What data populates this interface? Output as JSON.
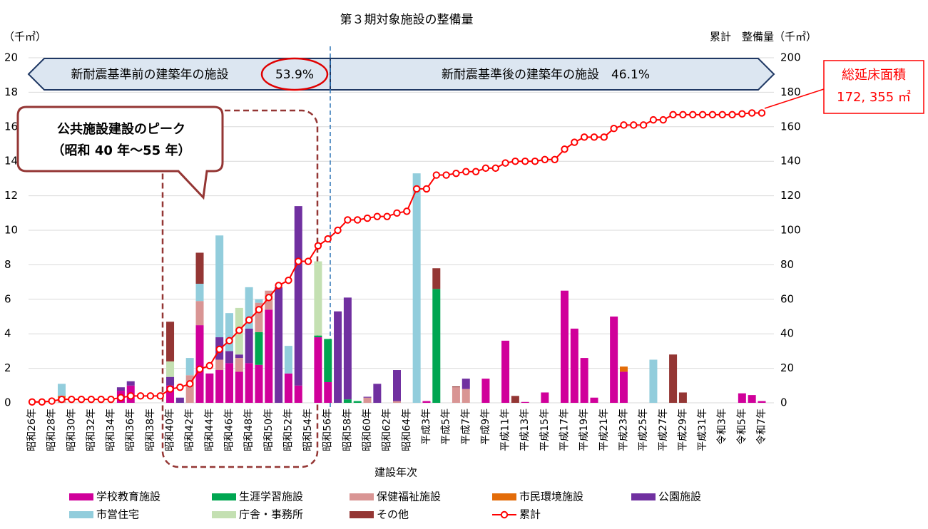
{
  "chart_data": {
    "type": "bar",
    "stacked": true,
    "title": "第３期対象施設の整備量",
    "y_label": "（千㎡）",
    "y2_label": "累計　整備量（千㎡）",
    "x_label": "建設年次",
    "annotations": {
      "before": "新耐震基準前の建築年の施設",
      "before_pct": "53.9%",
      "after": "新耐震基準後の建築年の施設　46.1%",
      "peak": "公共施設建設のピーク",
      "peak_range": "（昭和 40 年〜55 年）",
      "total_title": "総延床面積",
      "total_value": "172, 355 ㎡"
    },
    "categories": [
      "昭和26年",
      null,
      "昭和28年",
      null,
      "昭和30年",
      null,
      "昭和32年",
      null,
      "昭和34年",
      null,
      "昭和36年",
      null,
      "昭和38年",
      null,
      "昭和40年",
      null,
      "昭和42年",
      null,
      "昭和44年",
      null,
      "昭和46年",
      null,
      "昭和48年",
      null,
      "昭和50年",
      null,
      "昭和52年",
      null,
      "昭和54年",
      null,
      "昭和56年",
      null,
      "昭和58年",
      null,
      "昭和60年",
      null,
      "昭和62年",
      null,
      "昭和64年",
      null,
      "平成3年",
      null,
      "平成5年",
      null,
      "平成7年",
      null,
      "平成9年",
      null,
      "平成11年",
      null,
      "平成13年",
      null,
      "平成15年",
      null,
      "平成17年",
      null,
      "平成19年",
      null,
      "平成21年",
      null,
      "平成23年",
      null,
      "平成25年",
      null,
      "平成27年",
      null,
      "平成29年",
      null,
      "平成31年",
      null,
      "令和3年",
      null,
      "令和5年",
      null,
      "令和7年"
    ],
    "ylim": [
      0,
      20
    ],
    "yticks": [
      0,
      2,
      4,
      6,
      8,
      10,
      12,
      14,
      16,
      18,
      20
    ],
    "y2lim": [
      0,
      200
    ],
    "y2ticks": [
      0,
      20,
      40,
      60,
      80,
      100,
      120,
      140,
      160,
      180,
      200
    ],
    "grid": true,
    "series": [
      {
        "name": "学校教育施設",
        "color": "#d0009a",
        "values": [
          0,
          0,
          0,
          0,
          0,
          0,
          0,
          0,
          0,
          0.7,
          1,
          0,
          0,
          0,
          1,
          0,
          0,
          4.5,
          1.7,
          1.9,
          2.3,
          1.8,
          2.3,
          2.2,
          5.4,
          0,
          1.7,
          1,
          0,
          3.8,
          1.2,
          0,
          0,
          0,
          0,
          0,
          0,
          0,
          0,
          0,
          0.1,
          0,
          0,
          0,
          0,
          0,
          1.4,
          0,
          3.6,
          0,
          0.05,
          0,
          0.6,
          0,
          6.5,
          4.3,
          2.6,
          0.3,
          0,
          5,
          1.8,
          0,
          0,
          0,
          0,
          0,
          0,
          0,
          0,
          0,
          0,
          0,
          0.55,
          0.45,
          0.1
        ]
      },
      {
        "name": "生涯学習施設",
        "color": "#00a651",
        "values": [
          0,
          0,
          0,
          0,
          0,
          0,
          0,
          0,
          0,
          0,
          0,
          0,
          0,
          0,
          0,
          0,
          0,
          0,
          0,
          0,
          0,
          0,
          0,
          1.9,
          0,
          0,
          0,
          0,
          0,
          0.1,
          2.5,
          0,
          0.2,
          0.1,
          0,
          0,
          0,
          0,
          0,
          0,
          0,
          6.6,
          0,
          0,
          0,
          0,
          0,
          0,
          0,
          0,
          0,
          0,
          0,
          0,
          0,
          0,
          0,
          0,
          0,
          0,
          0,
          0,
          0,
          0,
          0,
          0,
          0,
          0,
          0,
          0,
          0,
          0,
          0,
          0,
          0
        ]
      },
      {
        "name": "保健福祉施設",
        "color": "#d99594",
        "values": [
          0,
          0,
          0,
          0.3,
          0,
          0,
          0,
          0,
          0,
          0,
          0,
          0,
          0,
          0,
          0,
          0,
          1.6,
          1.4,
          0,
          0.6,
          0,
          0.8,
          0,
          1.7,
          1.1,
          0,
          0,
          0,
          0,
          0,
          0,
          0,
          0,
          0,
          0.3,
          0,
          0,
          0.1,
          0,
          0,
          0,
          0,
          0,
          0.9,
          0.8,
          0,
          0,
          0,
          0,
          0,
          0,
          0,
          0,
          0,
          0,
          0,
          0,
          0,
          0,
          0,
          0,
          0,
          0,
          0,
          0,
          0,
          0,
          0,
          0,
          0,
          0,
          0,
          0,
          0,
          0
        ]
      },
      {
        "name": "市民環境施設",
        "color": "#e36c09",
        "values": [
          0,
          0,
          0,
          0.1,
          0,
          0,
          0,
          0,
          0,
          0,
          0,
          0,
          0,
          0,
          0,
          0,
          0,
          0,
          0,
          0,
          0,
          0,
          0,
          0,
          0,
          0,
          0,
          0,
          0,
          0,
          0,
          0,
          0,
          0,
          0,
          0,
          0,
          0,
          0,
          0,
          0,
          0,
          0,
          0,
          0,
          0,
          0,
          0,
          0,
          0,
          0,
          0,
          0,
          0,
          0,
          0,
          0,
          0,
          0,
          0,
          0.3,
          0,
          0,
          0,
          0,
          0,
          0,
          0,
          0,
          0,
          0,
          0,
          0,
          0,
          0
        ]
      },
      {
        "name": "公園施設",
        "color": "#7030a0",
        "values": [
          0,
          0,
          0,
          0,
          0,
          0,
          0,
          0,
          0,
          0.2,
          0.25,
          0,
          0,
          0,
          0.5,
          0.3,
          0,
          0,
          0,
          1.3,
          0.7,
          0.2,
          2,
          0,
          0,
          6.7,
          0,
          10.4,
          0,
          0,
          0,
          5.3,
          5.9,
          0,
          0.05,
          1.1,
          0,
          1.8,
          0,
          0,
          0,
          0,
          0,
          0,
          0.6,
          0,
          0,
          0,
          0,
          0,
          0,
          0,
          0,
          0,
          0,
          0,
          0,
          0,
          0,
          0,
          0,
          0,
          0,
          0,
          0,
          0,
          0,
          0,
          0,
          0,
          0,
          0,
          0,
          0,
          0
        ]
      },
      {
        "name": "市営住宅",
        "color": "#92cddc",
        "values": [
          0,
          0,
          0,
          0.7,
          0,
          0,
          0,
          0,
          0,
          0,
          0,
          0,
          0,
          0,
          0,
          0,
          1,
          1,
          0,
          5.9,
          2.2,
          0,
          2.4,
          0.2,
          0,
          0,
          1.6,
          0,
          0,
          0,
          0,
          0,
          0,
          0,
          0,
          0,
          0,
          0,
          0,
          13.3,
          0,
          0,
          0,
          0,
          0,
          0,
          0,
          0,
          0,
          0,
          0,
          0,
          0,
          0,
          0,
          0,
          0,
          0,
          0,
          0,
          0,
          0,
          0,
          2.5,
          0,
          0,
          0,
          0,
          0,
          0,
          0,
          0,
          0,
          0,
          0
        ]
      },
      {
        "name": "庁舎・事務所",
        "color": "#c4e0b2",
        "values": [
          0,
          0,
          0,
          0,
          0,
          0,
          0,
          0,
          0,
          0,
          0,
          0,
          0,
          0,
          0.9,
          0,
          0,
          0,
          0,
          0,
          0,
          2.7,
          0,
          0,
          0,
          0,
          0,
          0,
          0,
          4.3,
          0,
          0,
          0,
          0,
          0,
          0,
          0,
          0,
          0,
          0,
          0,
          0,
          0,
          0,
          0,
          0,
          0,
          0,
          0,
          0,
          0,
          0,
          0,
          0,
          0,
          0,
          0,
          0,
          0,
          0,
          0,
          0,
          0,
          0,
          0,
          0,
          0,
          0,
          0,
          0,
          0,
          0,
          0,
          0,
          0
        ]
      },
      {
        "name": "その他",
        "color": "#943634",
        "values": [
          0,
          0,
          0,
          0,
          0,
          0,
          0,
          0,
          0,
          0,
          0,
          0,
          0,
          0,
          2.3,
          0,
          0,
          1.8,
          0,
          0,
          0,
          0,
          0,
          0,
          0,
          0,
          0,
          0,
          0,
          0,
          0,
          0,
          0,
          0,
          0,
          0,
          0,
          0,
          0,
          0,
          0,
          1.2,
          0,
          0.05,
          0,
          0,
          0,
          0,
          0,
          0.4,
          0,
          0,
          0,
          0,
          0,
          0,
          0,
          0,
          0,
          0,
          0,
          0,
          0,
          0,
          0,
          2.8,
          0.6,
          0,
          0,
          0,
          0,
          0,
          0,
          0,
          0
        ]
      },
      {
        "name": "累計",
        "color": "#ff0000",
        "type": "line",
        "axis": "y2",
        "values": [
          0.5,
          0.5,
          1,
          2,
          2,
          2,
          2,
          2,
          2,
          3,
          4,
          4,
          4,
          4,
          8,
          9,
          11,
          19.5,
          21.5,
          31,
          36,
          42,
          48,
          54,
          61,
          68,
          71,
          82,
          82,
          91,
          95,
          100,
          106,
          106,
          107,
          108,
          108,
          110,
          111,
          124,
          124,
          132,
          132,
          133,
          134,
          134,
          136,
          136,
          139,
          140,
          140,
          140,
          141,
          141,
          147,
          151,
          154,
          154,
          154,
          159,
          161,
          161,
          161,
          164,
          164,
          167,
          167,
          167,
          167,
          167,
          167,
          167,
          167.5,
          168,
          168
        ]
      }
    ]
  }
}
